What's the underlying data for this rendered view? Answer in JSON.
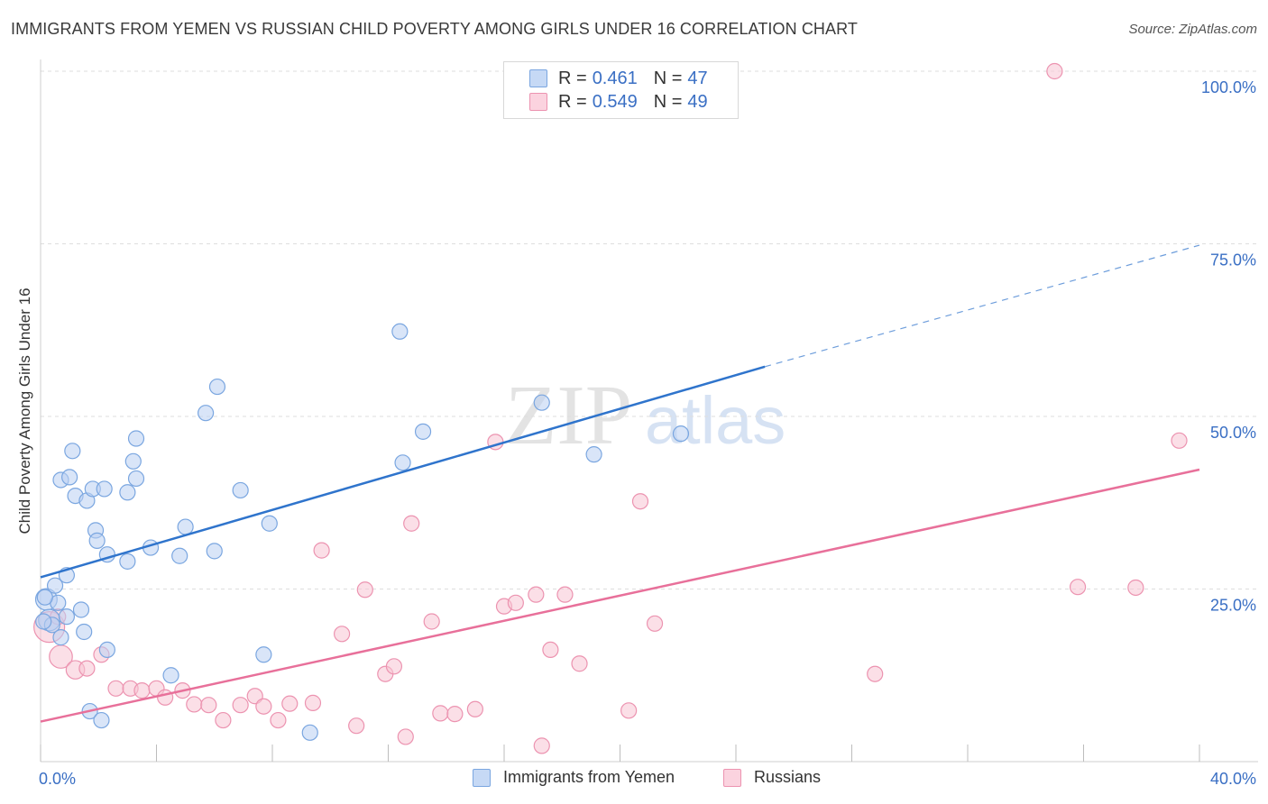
{
  "header": {
    "title": "IMMIGRANTS FROM YEMEN VS RUSSIAN CHILD POVERTY AMONG GIRLS UNDER 16 CORRELATION CHART",
    "source": "Source: ZipAtlas.com"
  },
  "watermark": {
    "zip": "ZIP",
    "atlas": "atlas"
  },
  "colors": {
    "blue_fill": "#b9d0f3",
    "blue_stroke": "#7aa6e0",
    "blue_line": "#2f74cc",
    "pink_fill": "#f8c4d4",
    "pink_stroke": "#ec93b0",
    "pink_line": "#e8709a",
    "axis_text": "#3a6fc4",
    "grid": "#dddddd"
  },
  "legend_top": {
    "rows": [
      {
        "r_label": "R =",
        "r_value": "0.461",
        "n_label": "N =",
        "n_value": "47"
      },
      {
        "r_label": "R =",
        "r_value": "0.549",
        "n_label": "N =",
        "n_value": "49"
      }
    ]
  },
  "legend_bottom": {
    "items": [
      "Immigrants from Yemen",
      "Russians"
    ]
  },
  "chart_data": {
    "type": "scatter",
    "title": "IMMIGRANTS FROM YEMEN VS RUSSIAN CHILD POVERTY AMONG GIRLS UNDER 16 CORRELATION CHART",
    "xlabel": "",
    "ylabel": "Child Poverty Among Girls Under 16",
    "xlim": [
      0,
      40
    ],
    "ylim": [
      0,
      100
    ],
    "x_tick_labels": [
      "0.0%",
      "40.0%"
    ],
    "y_tick_labels": [
      "25.0%",
      "50.0%",
      "75.0%",
      "100.0%"
    ],
    "y_ticks": [
      25,
      50,
      75,
      100
    ],
    "grid": true,
    "legend_placement": "top-center",
    "series": [
      {
        "name": "Immigrants from Yemen",
        "color": "#b9d0f3",
        "trend": {
          "x": [
            0,
            25
          ],
          "y": [
            26.7,
            57.2
          ],
          "dashed_extension_to": [
            40,
            74.8
          ]
        },
        "points": [
          {
            "x": 0.2,
            "y": 23.5,
            "s": 1.4
          },
          {
            "x": 0.3,
            "y": 20.5,
            "s": 1.4
          },
          {
            "x": 0.4,
            "y": 19.8,
            "s": 1
          },
          {
            "x": 0.5,
            "y": 25.5,
            "s": 1
          },
          {
            "x": 0.6,
            "y": 23.0,
            "s": 1
          },
          {
            "x": 0.7,
            "y": 18.0,
            "s": 1
          },
          {
            "x": 0.7,
            "y": 40.8,
            "s": 1
          },
          {
            "x": 0.9,
            "y": 27.0,
            "s": 1
          },
          {
            "x": 0.9,
            "y": 21.0,
            "s": 1
          },
          {
            "x": 1.0,
            "y": 41.2,
            "s": 1
          },
          {
            "x": 1.1,
            "y": 45.0,
            "s": 1
          },
          {
            "x": 1.2,
            "y": 38.5,
            "s": 1
          },
          {
            "x": 1.4,
            "y": 22.0,
            "s": 1
          },
          {
            "x": 1.5,
            "y": 18.8,
            "s": 1
          },
          {
            "x": 1.6,
            "y": 37.8,
            "s": 1
          },
          {
            "x": 1.7,
            "y": 7.3,
            "s": 1
          },
          {
            "x": 1.8,
            "y": 39.5,
            "s": 1
          },
          {
            "x": 1.9,
            "y": 33.5,
            "s": 1
          },
          {
            "x": 1.95,
            "y": 32.0,
            "s": 1
          },
          {
            "x": 2.1,
            "y": 6.0,
            "s": 1
          },
          {
            "x": 2.2,
            "y": 39.5,
            "s": 1
          },
          {
            "x": 2.3,
            "y": 16.2,
            "s": 1
          },
          {
            "x": 2.3,
            "y": 30.0,
            "s": 1
          },
          {
            "x": 3.0,
            "y": 29.0,
            "s": 1
          },
          {
            "x": 3.0,
            "y": 39.0,
            "s": 1
          },
          {
            "x": 3.2,
            "y": 43.5,
            "s": 1
          },
          {
            "x": 3.3,
            "y": 46.8,
            "s": 1
          },
          {
            "x": 3.3,
            "y": 41.0,
            "s": 1
          },
          {
            "x": 3.8,
            "y": 31.0,
            "s": 1
          },
          {
            "x": 4.5,
            "y": 12.5,
            "s": 1
          },
          {
            "x": 4.8,
            "y": 29.8,
            "s": 1
          },
          {
            "x": 5.0,
            "y": 34.0,
            "s": 1
          },
          {
            "x": 5.7,
            "y": 50.5,
            "s": 1
          },
          {
            "x": 6.0,
            "y": 30.5,
            "s": 1
          },
          {
            "x": 6.1,
            "y": 54.3,
            "s": 1
          },
          {
            "x": 6.9,
            "y": 39.3,
            "s": 1
          },
          {
            "x": 7.7,
            "y": 15.5,
            "s": 1
          },
          {
            "x": 7.9,
            "y": 34.5,
            "s": 1
          },
          {
            "x": 9.3,
            "y": 4.2,
            "s": 1
          },
          {
            "x": 12.4,
            "y": 62.3,
            "s": 1
          },
          {
            "x": 12.5,
            "y": 43.3,
            "s": 1
          },
          {
            "x": 13.2,
            "y": 47.8,
            "s": 1
          },
          {
            "x": 17.3,
            "y": 52.0,
            "s": 1
          },
          {
            "x": 19.1,
            "y": 44.5,
            "s": 1
          },
          {
            "x": 22.1,
            "y": 47.5,
            "s": 1
          },
          {
            "x": 0.1,
            "y": 20.3,
            "s": 1
          },
          {
            "x": 0.15,
            "y": 23.8,
            "s": 1
          }
        ]
      },
      {
        "name": "Russians",
        "color": "#f8c4d4",
        "trend": {
          "x": [
            0,
            40
          ],
          "y": [
            5.8,
            42.3
          ]
        },
        "points": [
          {
            "x": 0.3,
            "y": 19.5,
            "s": 2.0
          },
          {
            "x": 0.6,
            "y": 21.0,
            "s": 1
          },
          {
            "x": 0.7,
            "y": 15.2,
            "s": 1.5
          },
          {
            "x": 1.2,
            "y": 13.3,
            "s": 1.2
          },
          {
            "x": 1.6,
            "y": 13.5,
            "s": 1
          },
          {
            "x": 2.1,
            "y": 15.5,
            "s": 1
          },
          {
            "x": 2.6,
            "y": 10.6,
            "s": 1
          },
          {
            "x": 3.1,
            "y": 10.6,
            "s": 1
          },
          {
            "x": 3.5,
            "y": 10.3,
            "s": 1
          },
          {
            "x": 4.0,
            "y": 10.6,
            "s": 1
          },
          {
            "x": 4.3,
            "y": 9.3,
            "s": 1
          },
          {
            "x": 4.9,
            "y": 10.3,
            "s": 1
          },
          {
            "x": 5.3,
            "y": 8.3,
            "s": 1
          },
          {
            "x": 5.8,
            "y": 8.2,
            "s": 1
          },
          {
            "x": 6.3,
            "y": 6.0,
            "s": 1
          },
          {
            "x": 6.9,
            "y": 8.2,
            "s": 1
          },
          {
            "x": 7.4,
            "y": 9.5,
            "s": 1
          },
          {
            "x": 7.7,
            "y": 8.0,
            "s": 1
          },
          {
            "x": 8.2,
            "y": 6.0,
            "s": 1
          },
          {
            "x": 8.6,
            "y": 8.4,
            "s": 1
          },
          {
            "x": 9.4,
            "y": 8.5,
            "s": 1
          },
          {
            "x": 9.7,
            "y": 30.6,
            "s": 1
          },
          {
            "x": 10.4,
            "y": 18.5,
            "s": 1
          },
          {
            "x": 10.9,
            "y": 5.2,
            "s": 1
          },
          {
            "x": 11.2,
            "y": 24.9,
            "s": 1
          },
          {
            "x": 11.9,
            "y": 12.7,
            "s": 1
          },
          {
            "x": 12.2,
            "y": 13.8,
            "s": 1
          },
          {
            "x": 12.6,
            "y": 3.6,
            "s": 1
          },
          {
            "x": 12.8,
            "y": 34.5,
            "s": 1
          },
          {
            "x": 13.5,
            "y": 20.3,
            "s": 1
          },
          {
            "x": 13.8,
            "y": 7.0,
            "s": 1
          },
          {
            "x": 14.3,
            "y": 6.9,
            "s": 1
          },
          {
            "x": 15.0,
            "y": 7.6,
            "s": 1
          },
          {
            "x": 15.7,
            "y": 46.3,
            "s": 1
          },
          {
            "x": 16.0,
            "y": 22.5,
            "s": 1
          },
          {
            "x": 16.4,
            "y": 23.0,
            "s": 1
          },
          {
            "x": 17.1,
            "y": 24.2,
            "s": 1
          },
          {
            "x": 17.3,
            "y": 2.3,
            "s": 1
          },
          {
            "x": 17.6,
            "y": 16.2,
            "s": 1
          },
          {
            "x": 18.1,
            "y": 24.2,
            "s": 1
          },
          {
            "x": 18.6,
            "y": 14.2,
            "s": 1
          },
          {
            "x": 20.3,
            "y": 7.4,
            "s": 1
          },
          {
            "x": 20.7,
            "y": 37.7,
            "s": 1
          },
          {
            "x": 21.2,
            "y": 20.0,
            "s": 1
          },
          {
            "x": 28.8,
            "y": 12.7,
            "s": 1
          },
          {
            "x": 35.0,
            "y": 100.0,
            "s": 1
          },
          {
            "x": 35.8,
            "y": 25.3,
            "s": 1
          },
          {
            "x": 37.8,
            "y": 25.2,
            "s": 1
          },
          {
            "x": 39.3,
            "y": 46.5,
            "s": 1
          }
        ]
      }
    ]
  }
}
